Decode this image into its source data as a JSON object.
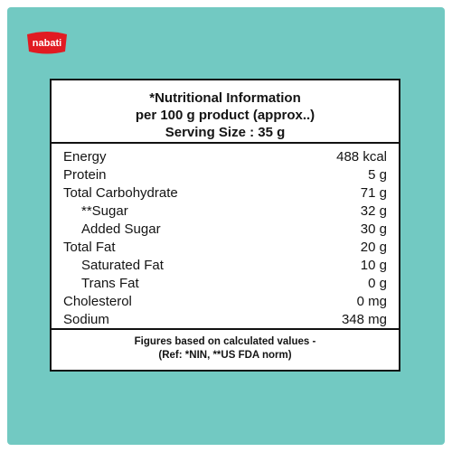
{
  "brand": {
    "logo_text": "nabati",
    "logo_color": "#e11b22"
  },
  "colors": {
    "background": "#72c9c2",
    "text": "#141414",
    "border": "#111111"
  },
  "header": {
    "line1": "*Nutritional Information",
    "line2": "per 100 g product (approx..)",
    "line3": "Serving Size : 35 g"
  },
  "nutrients": [
    {
      "name": "Energy",
      "value": "488 kcal",
      "indent": false
    },
    {
      "name": "Protein",
      "value": "5 g",
      "indent": false
    },
    {
      "name": "Total Carbohydrate",
      "value": "71 g",
      "indent": false
    },
    {
      "name": "**Sugar",
      "value": "32 g",
      "indent": true
    },
    {
      "name": "Added Sugar",
      "value": "30 g",
      "indent": true
    },
    {
      "name": "Total Fat",
      "value": "20 g",
      "indent": false
    },
    {
      "name": "Saturated Fat",
      "value": "10 g",
      "indent": true
    },
    {
      "name": "Trans Fat",
      "value": "0 g",
      "indent": true
    },
    {
      "name": "Cholesterol",
      "value": "0 mg",
      "indent": false
    },
    {
      "name": "Sodium",
      "value": "348 mg",
      "indent": false
    }
  ],
  "footer": {
    "line1": "Figures based on calculated values -",
    "line2": "(Ref: *NIN, **US FDA norm)"
  }
}
